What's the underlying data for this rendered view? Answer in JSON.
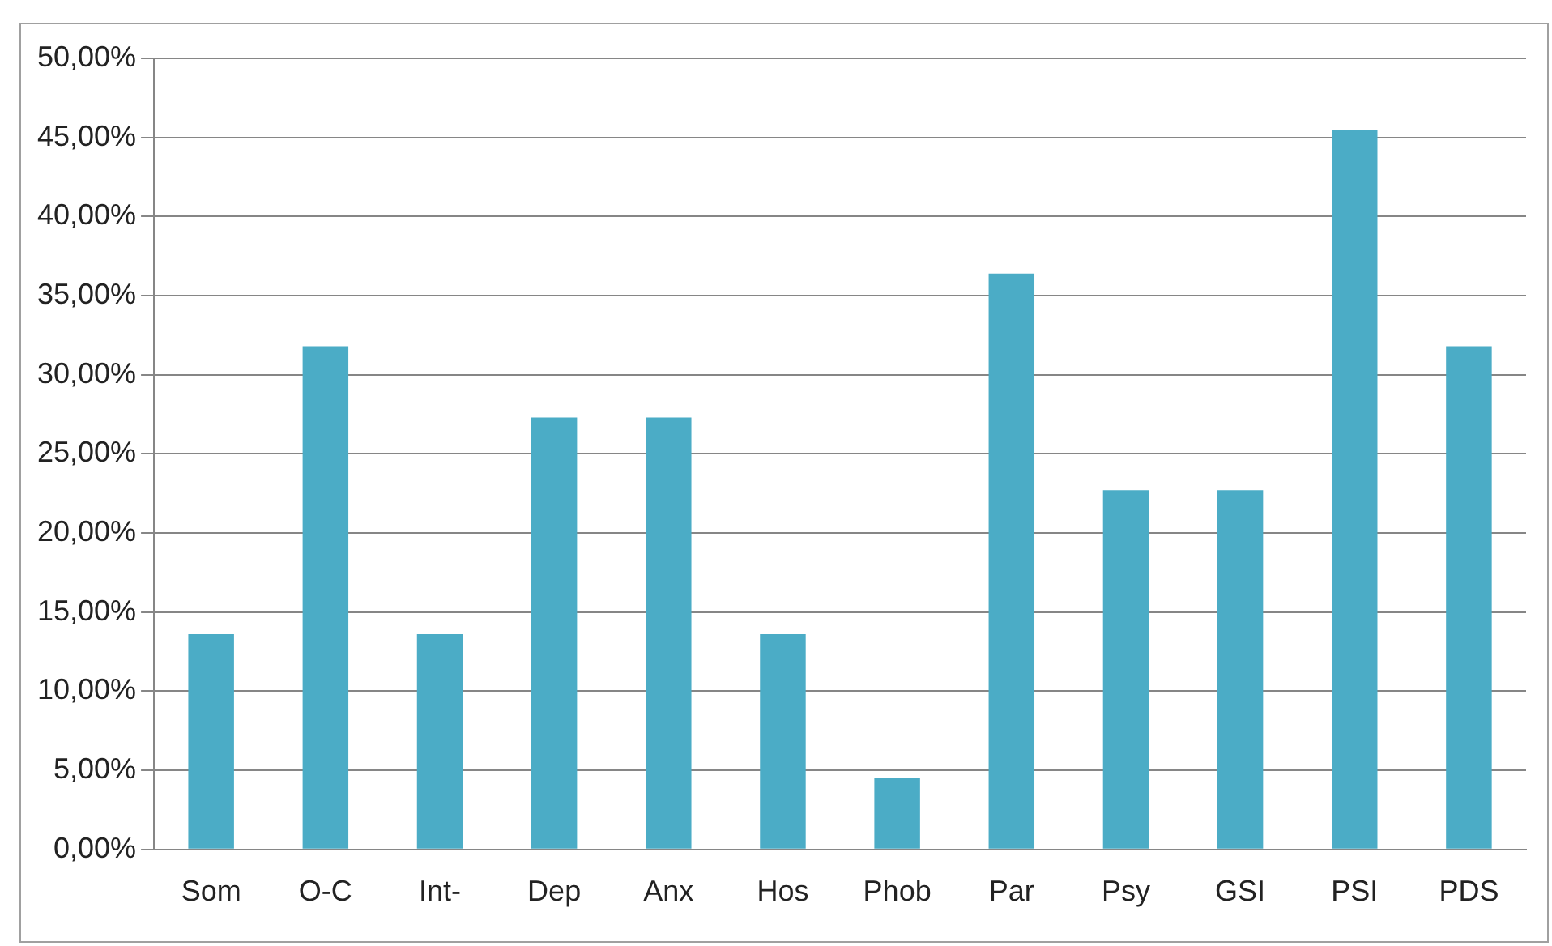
{
  "chart_data": {
    "type": "bar",
    "categories": [
      "Som",
      "O-C",
      "Int-",
      "Dep",
      "Anx",
      "Hos",
      "Phob",
      "Par",
      "Psy",
      "GSI",
      "PSI",
      "PDS"
    ],
    "values": [
      13.6,
      31.8,
      13.6,
      27.3,
      27.3,
      13.6,
      4.5,
      36.4,
      22.7,
      22.7,
      45.5,
      31.8
    ],
    "color": "#4bacc6",
    "ylim": [
      0,
      50
    ],
    "yticks": [
      {
        "value": 0,
        "label": "0,00%"
      },
      {
        "value": 5,
        "label": "5,00%"
      },
      {
        "value": 10,
        "label": "10,00%"
      },
      {
        "value": 15,
        "label": "15,00%"
      },
      {
        "value": 20,
        "label": "20,00%"
      },
      {
        "value": 25,
        "label": "25,00%"
      },
      {
        "value": 30,
        "label": "30,00%"
      },
      {
        "value": 35,
        "label": "35,00%"
      },
      {
        "value": 40,
        "label": "40,00%"
      },
      {
        "value": 45,
        "label": "45,00%"
      },
      {
        "value": 50,
        "label": "50,00%"
      }
    ],
    "grid": "y",
    "legend": false
  }
}
